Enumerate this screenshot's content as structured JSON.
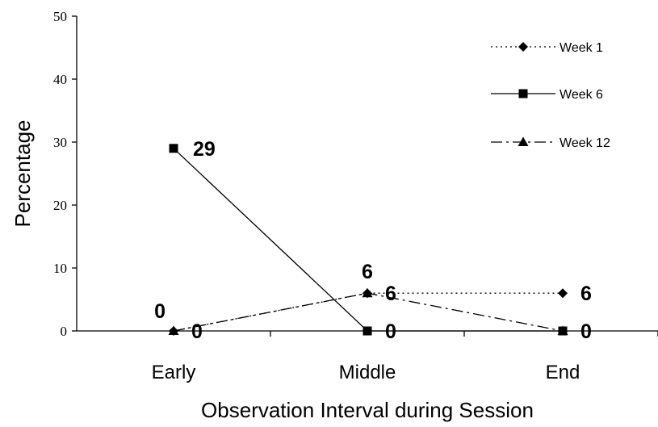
{
  "chart_data": {
    "type": "line",
    "categories": [
      "Early",
      "Middle",
      "End"
    ],
    "xlabel": "Observation Interval during Session",
    "ylabel": "Percentage",
    "ylim": [
      0,
      50
    ],
    "yticks": [
      "0",
      "10",
      "20",
      "30",
      "40",
      "50"
    ],
    "grid": false,
    "legend_position": "top-right",
    "series": [
      {
        "name": "Week 1",
        "values": [
          0,
          6,
          6
        ],
        "style": "dotted",
        "marker": "diamond",
        "labels": [
          "0",
          "6",
          "6"
        ]
      },
      {
        "name": "Week 6",
        "values": [
          29,
          0,
          0
        ],
        "style": "solid",
        "marker": "square",
        "labels": [
          "29",
          "0",
          "0"
        ]
      },
      {
        "name": "Week 12",
        "values": [
          0,
          6,
          0
        ],
        "style": "dashdot",
        "marker": "triangle",
        "labels": [
          "0",
          "6",
          "0"
        ]
      }
    ],
    "color": "#000000"
  }
}
